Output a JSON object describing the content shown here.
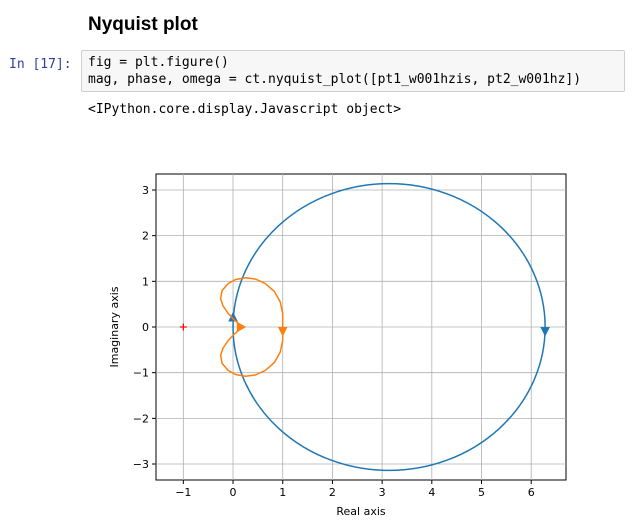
{
  "heading": "Nyquist plot",
  "cell": {
    "prompt": "In [17]:",
    "code_lines": [
      "fig = plt.figure()",
      "mag, phase, omega = ct.nyquist_plot([pt1_w001hzis, pt2_w001hz])"
    ],
    "output": "<IPython.core.display.Javascript object>"
  },
  "chart_data": {
    "type": "line",
    "title": "",
    "xlabel": "Real axis",
    "ylabel": "Imaginary axis",
    "xlim": [
      -1.55,
      6.7
    ],
    "ylim": [
      -3.35,
      3.35
    ],
    "xticks": [
      -1,
      0,
      1,
      2,
      3,
      4,
      5,
      6
    ],
    "yticks": [
      -3,
      -2,
      -1,
      0,
      1,
      2,
      3
    ],
    "grid": true,
    "series": [
      {
        "color": "#1f77b4",
        "shape": "circle",
        "center": [
          3.14,
          0
        ],
        "radius": 3.14,
        "arrows": [
          {
            "x": 0.0,
            "y": 0.2,
            "direction": "up"
          },
          {
            "x": 6.28,
            "y": -0.08,
            "direction": "down"
          }
        ]
      },
      {
        "color": "#ff7f0e",
        "shape": "cardioid-loop",
        "points_upper": [
          [
            0.2,
            0.02
          ],
          [
            0.12,
            0.07
          ],
          [
            0.02,
            0.16
          ],
          [
            -0.1,
            0.3
          ],
          [
            -0.2,
            0.46
          ],
          [
            -0.25,
            0.62
          ],
          [
            -0.22,
            0.8
          ],
          [
            -0.1,
            0.95
          ],
          [
            0.05,
            1.04
          ],
          [
            0.25,
            1.08
          ],
          [
            0.45,
            1.05
          ],
          [
            0.65,
            0.95
          ],
          [
            0.83,
            0.78
          ],
          [
            0.95,
            0.55
          ],
          [
            1.0,
            0.3
          ],
          [
            1.0,
            0.0
          ]
        ],
        "arrows": [
          {
            "x": 0.15,
            "y": 0.0,
            "direction": "right"
          },
          {
            "x": 1.0,
            "y": -0.08,
            "direction": "down"
          }
        ]
      }
    ],
    "markers": [
      {
        "x": -1,
        "y": 0,
        "symbol": "+",
        "color": "#ff0000"
      }
    ]
  }
}
